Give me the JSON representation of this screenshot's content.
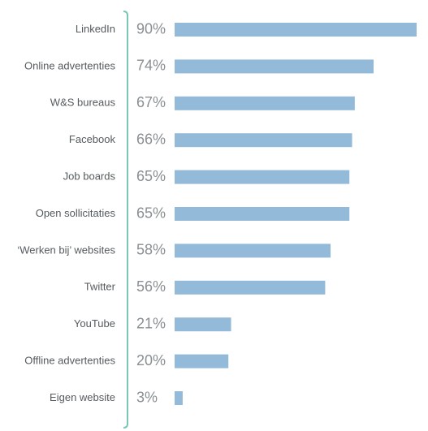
{
  "chart_data": {
    "type": "bar",
    "orientation": "horizontal",
    "categories": [
      "LinkedIn",
      "Online advertenties",
      "W&S bureaus",
      "Facebook",
      "Job boards",
      "Open sollicitaties",
      "‘Werken bij’ websites",
      "Twitter",
      "YouTube",
      "Offline advertenties",
      "Eigen website"
    ],
    "values": [
      90,
      74,
      67,
      66,
      65,
      65,
      58,
      56,
      21,
      20,
      3
    ],
    "value_labels": [
      "90%",
      "74%",
      "67%",
      "66%",
      "65%",
      "65%",
      "58%",
      "56%",
      "21%",
      "20%",
      "3%"
    ],
    "unit": "%",
    "xlim": [
      0,
      90
    ],
    "grid": false,
    "legend": "none",
    "colors": {
      "bar": "#94bad9",
      "axis": "#79c6b6",
      "category_text": "#555a5e",
      "value_text": "#8a8f93"
    }
  }
}
